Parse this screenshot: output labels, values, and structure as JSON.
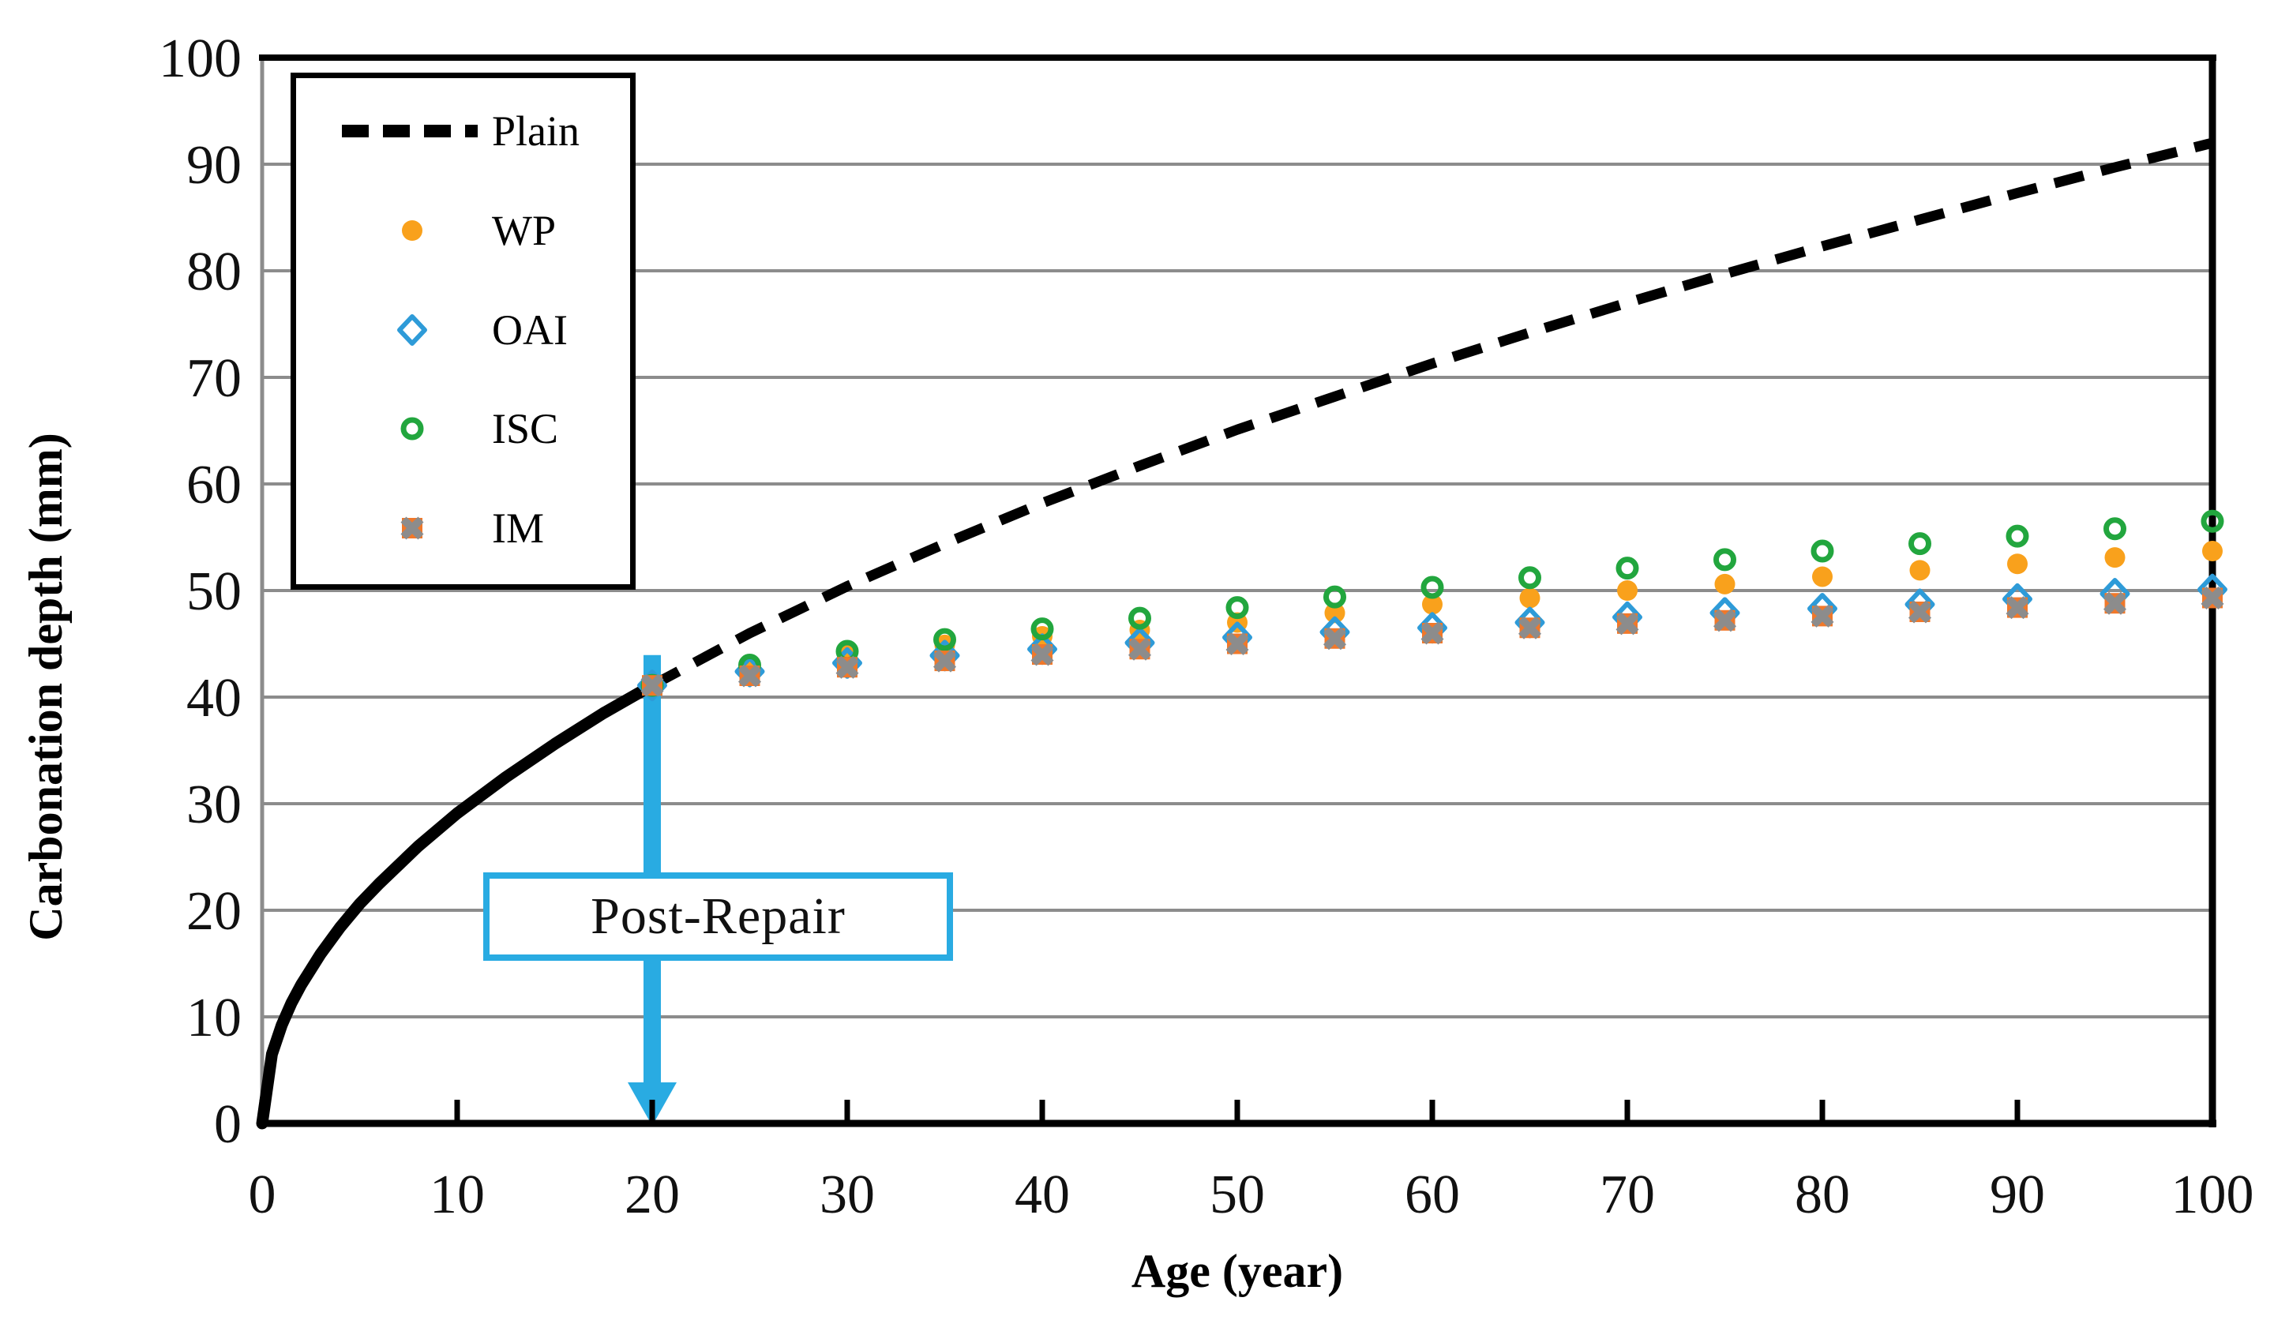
{
  "chart_data": {
    "type": "scatter",
    "title": "",
    "xlabel": "Age (year)",
    "ylabel": "Carbonation depth (mm)",
    "xlim": [
      0,
      100
    ],
    "ylim": [
      0,
      100
    ],
    "xticks": [
      0,
      10,
      20,
      30,
      40,
      50,
      60,
      70,
      80,
      90,
      100
    ],
    "yticks": [
      0,
      10,
      20,
      30,
      40,
      50,
      60,
      70,
      80,
      90,
      100
    ],
    "grid": "horizontal-major",
    "gridline_color": "#8C8C8C",
    "legend_position": "top-left",
    "annotation": {
      "label": "Post-Repair",
      "x": 20,
      "arrow_from_y": 39.5,
      "arrow_to_y": 0,
      "color": "#29ABE2"
    },
    "plain_curve": {
      "name": "Plain",
      "color": "#000000",
      "style": "solid-then-dashed",
      "solid_until": 20,
      "x": [
        0,
        0.5,
        1,
        1.5,
        2,
        3,
        4,
        5,
        6,
        8,
        10,
        12.5,
        15,
        17.5,
        20,
        25,
        30,
        35,
        40,
        45,
        50,
        55,
        60,
        65,
        70,
        75,
        80,
        85,
        90,
        95,
        100
      ],
      "y": [
        0,
        6.5,
        9.2,
        11.3,
        13.0,
        15.9,
        18.4,
        20.6,
        22.5,
        26.0,
        29.1,
        32.5,
        35.6,
        38.5,
        41.1,
        46.0,
        50.4,
        54.4,
        58.2,
        61.7,
        65.1,
        68.2,
        71.3,
        74.2,
        77.0,
        79.7,
        82.3,
        84.8,
        87.3,
        89.7,
        92.0
      ]
    },
    "series": [
      {
        "name": "WP",
        "marker": "filled-circle",
        "color": "#F9A11C",
        "x": [
          20,
          25,
          30,
          35,
          40,
          45,
          50,
          55,
          60,
          65,
          70,
          75,
          80,
          85,
          90,
          95,
          100
        ],
        "y": [
          41.1,
          42.8,
          43.9,
          44.9,
          45.7,
          46.3,
          47.0,
          47.9,
          48.7,
          49.3,
          50.0,
          50.6,
          51.3,
          51.9,
          52.5,
          53.1,
          53.7
        ]
      },
      {
        "name": "OAI",
        "marker": "open-diamond",
        "color": "#2E9BD8",
        "x": [
          20,
          25,
          30,
          35,
          40,
          45,
          50,
          55,
          60,
          65,
          70,
          75,
          80,
          85,
          90,
          95,
          100
        ],
        "y": [
          41.1,
          42.4,
          43.2,
          43.9,
          44.5,
          45.1,
          45.6,
          46.1,
          46.5,
          47.0,
          47.5,
          47.9,
          48.3,
          48.7,
          49.2,
          49.7,
          50.1
        ]
      },
      {
        "name": "ISC",
        "marker": "open-circle",
        "color": "#22A63E",
        "x": [
          20,
          25,
          30,
          35,
          40,
          45,
          50,
          55,
          60,
          65,
          70,
          75,
          80,
          85,
          90,
          95,
          100
        ],
        "y": [
          41.1,
          43.0,
          44.3,
          45.4,
          46.4,
          47.4,
          48.4,
          49.4,
          50.3,
          51.2,
          52.1,
          52.9,
          53.7,
          54.4,
          55.1,
          55.8,
          56.5
        ]
      },
      {
        "name": "IM",
        "marker": "square-x",
        "color": "#F0782A",
        "x_color": "#8C8C8C",
        "x": [
          20,
          25,
          30,
          35,
          40,
          45,
          50,
          55,
          60,
          65,
          70,
          75,
          80,
          85,
          90,
          95,
          100
        ],
        "y": [
          41.1,
          42.0,
          42.8,
          43.4,
          44.0,
          44.5,
          45.0,
          45.5,
          46.0,
          46.5,
          46.9,
          47.2,
          47.6,
          48.0,
          48.4,
          48.8,
          49.3
        ]
      }
    ]
  }
}
